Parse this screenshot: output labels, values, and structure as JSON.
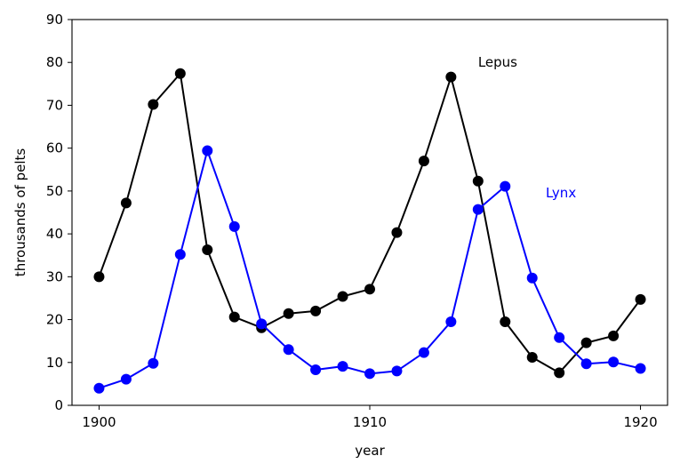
{
  "chart_data": {
    "type": "line",
    "title": "",
    "xlabel": "year",
    "ylabel": "throusands of pelts",
    "xlim": [
      1899,
      1921
    ],
    "ylim": [
      0,
      90
    ],
    "xticks": [
      1900,
      1910,
      1920
    ],
    "yticks": [
      0,
      10,
      20,
      30,
      40,
      50,
      60,
      70,
      80,
      90
    ],
    "grid": false,
    "x": [
      1900,
      1901,
      1902,
      1903,
      1904,
      1905,
      1906,
      1907,
      1908,
      1909,
      1910,
      1911,
      1912,
      1913,
      1914,
      1915,
      1916,
      1917,
      1918,
      1919,
      1920
    ],
    "series": [
      {
        "name": "Lepus",
        "color": "#000000",
        "marker": "circle",
        "values": [
          30,
          47.2,
          70.2,
          77.4,
          36.3,
          20.6,
          18.1,
          21.4,
          22,
          25.4,
          27.1,
          40.3,
          57,
          76.6,
          52.3,
          19.5,
          11.2,
          7.6,
          14.6,
          16.2,
          24.7
        ]
      },
      {
        "name": "Lynx",
        "color": "#0000ff",
        "marker": "circle",
        "values": [
          4,
          6.1,
          9.8,
          35.2,
          59.4,
          41.7,
          19,
          13,
          8.3,
          9.1,
          7.4,
          8,
          12.3,
          19.5,
          45.7,
          51.1,
          29.7,
          15.8,
          9.7,
          10.1,
          8.6
        ]
      }
    ],
    "annotations": [
      {
        "text": "Lepus",
        "x": 1914,
        "y": 79,
        "color": "#000000"
      },
      {
        "text": "Lynx",
        "x": 1916.5,
        "y": 48.5,
        "color": "#0000ff"
      }
    ]
  }
}
